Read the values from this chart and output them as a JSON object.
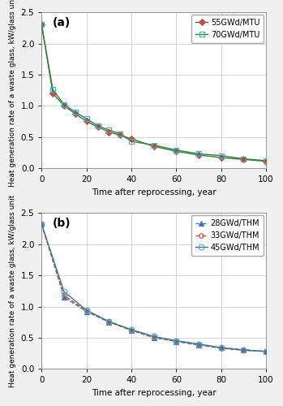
{
  "panel_a": {
    "label": "(a)",
    "series": [
      {
        "name": "55GWd/MTU",
        "color": "#c0504d",
        "line_color": "#3d7a3d",
        "marker": "D",
        "marker_size": 4,
        "marker_facecolor": "#c0504d",
        "linestyle": "-",
        "x": [
          0,
          5,
          10,
          15,
          20,
          25,
          30,
          35,
          40,
          50,
          60,
          70,
          80,
          90,
          100
        ],
        "y": [
          2.3,
          1.2,
          1.0,
          0.87,
          0.75,
          0.66,
          0.58,
          0.53,
          0.47,
          0.35,
          0.27,
          0.21,
          0.17,
          0.14,
          0.11
        ]
      },
      {
        "name": "70GWd/MTU",
        "color": "#4bacc6",
        "line_color": "#3d7a3d",
        "marker": "s",
        "marker_size": 5,
        "marker_facecolor": "none",
        "linestyle": "-",
        "x": [
          0,
          5,
          10,
          15,
          20,
          25,
          30,
          35,
          40,
          50,
          60,
          70,
          80,
          90,
          100
        ],
        "y": [
          2.3,
          1.26,
          1.02,
          0.9,
          0.79,
          0.68,
          0.61,
          0.55,
          0.43,
          0.37,
          0.29,
          0.23,
          0.2,
          0.15,
          0.12
        ]
      }
    ],
    "xlabel": "Time after reprocessing, year",
    "ylabel": "Heat generation rate of a waste glass, kW/glass unit",
    "ylim": [
      0.0,
      2.5
    ],
    "xlim": [
      0,
      100
    ],
    "yticks": [
      0.0,
      0.5,
      1.0,
      1.5,
      2.0,
      2.5
    ],
    "xticks": [
      0,
      20,
      40,
      60,
      80,
      100
    ]
  },
  "panel_b": {
    "label": "(b)",
    "series": [
      {
        "name": "28GWd/THM",
        "color": "#4472c4",
        "line_color": "#4472c4",
        "marker": "^",
        "marker_size": 5,
        "marker_facecolor": "#4472c4",
        "linestyle": "--",
        "x": [
          0,
          10,
          20,
          30,
          40,
          50,
          60,
          70,
          80,
          90,
          100
        ],
        "y": [
          2.32,
          1.15,
          0.92,
          0.75,
          0.62,
          0.5,
          0.44,
          0.38,
          0.34,
          0.31,
          0.28
        ]
      },
      {
        "name": "33GWd/THM",
        "color": "#c0504d",
        "line_color": "#c0504d",
        "marker": "o",
        "marker_size": 4,
        "marker_facecolor": "none",
        "linestyle": "--",
        "x": [
          0,
          10,
          20,
          30,
          40,
          50,
          60,
          70,
          80,
          90,
          100
        ],
        "y": [
          2.32,
          1.18,
          0.93,
          0.76,
          0.62,
          0.51,
          0.45,
          0.39,
          0.33,
          0.3,
          0.28
        ]
      },
      {
        "name": "45GWd/THM",
        "color": "#4bacc6",
        "line_color": "#3d7a7a",
        "marker": "o",
        "marker_size": 5,
        "marker_facecolor": "none",
        "linestyle": "-",
        "x": [
          0,
          10,
          20,
          30,
          40,
          50,
          60,
          70,
          80,
          90,
          100
        ],
        "y": [
          2.32,
          1.24,
          0.94,
          0.76,
          0.63,
          0.52,
          0.45,
          0.4,
          0.34,
          0.3,
          0.28
        ]
      }
    ],
    "xlabel": "Time after reprocessing, year",
    "ylabel": "Heat generation rate of a waste glass, kW/glass unit",
    "ylim": [
      0.0,
      2.5
    ],
    "xlim": [
      0,
      100
    ],
    "yticks": [
      0.0,
      0.5,
      1.0,
      1.5,
      2.0,
      2.5
    ],
    "xticks": [
      0,
      20,
      40,
      60,
      80,
      100
    ]
  },
  "bg_color": "#ffffff",
  "grid_color": "#d0d0d0",
  "fig_bg": "#f0f0f0"
}
